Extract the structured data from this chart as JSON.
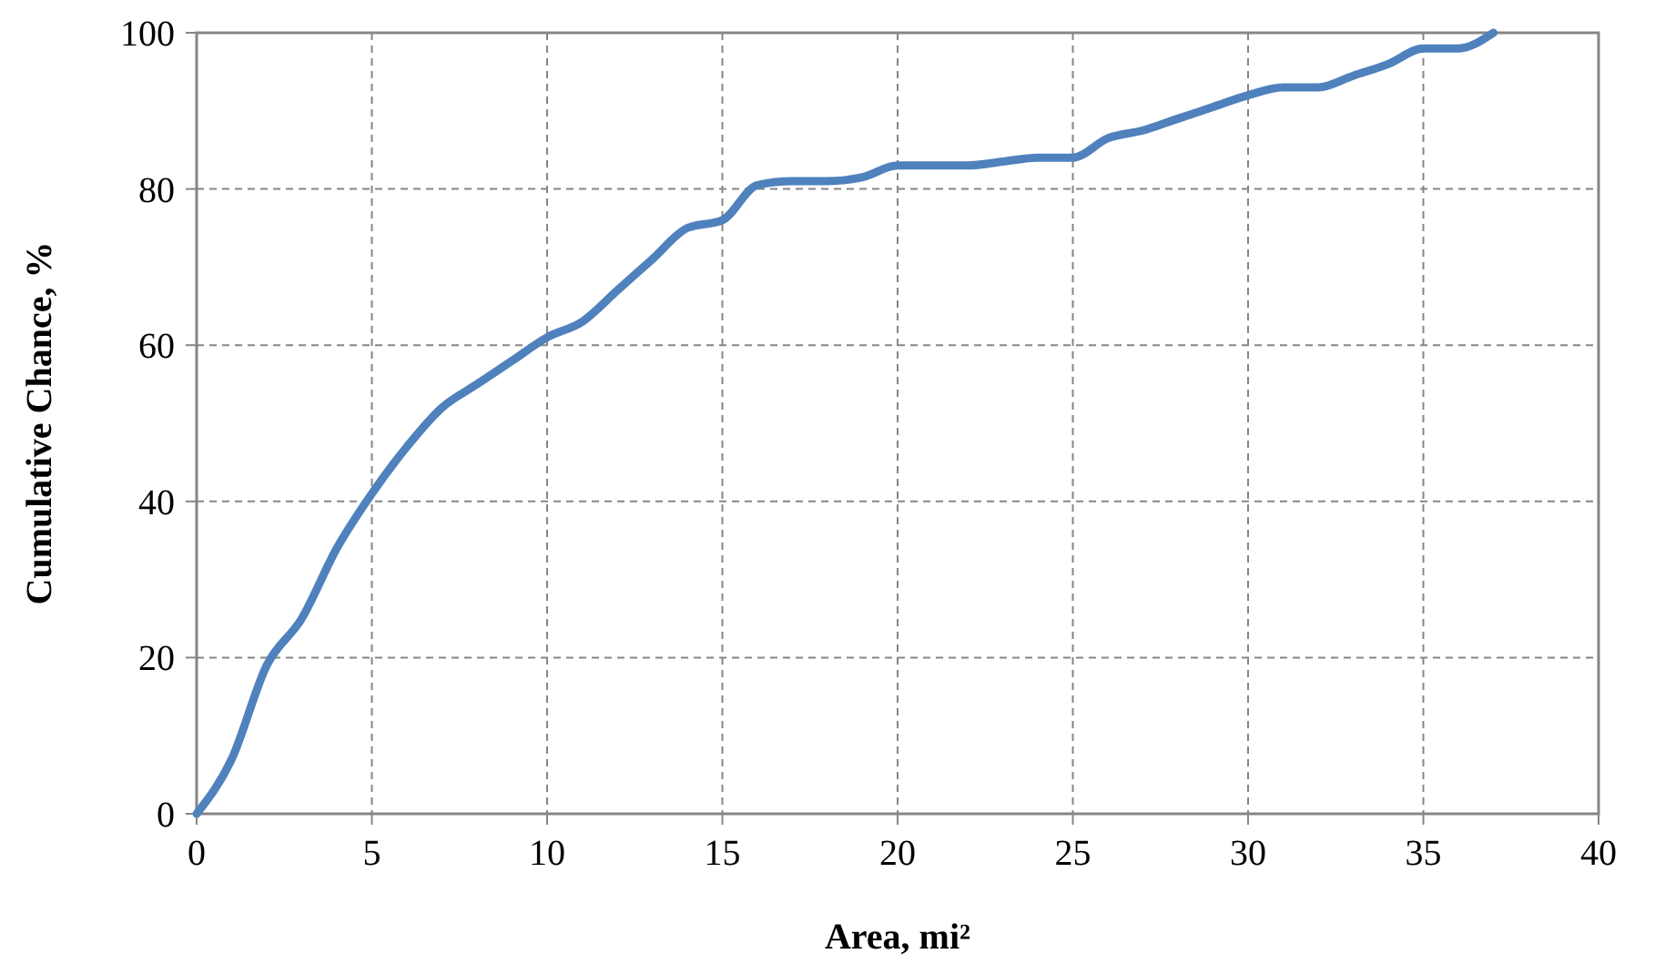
{
  "chart_data": {
    "type": "line",
    "xlabel": "Area, mi²",
    "ylabel": "Cumulative Chance, %",
    "x": [
      0,
      1,
      2,
      3,
      4,
      5,
      6,
      7,
      8,
      9,
      10,
      11,
      12,
      13,
      14,
      15,
      16,
      17,
      18,
      19,
      20,
      21,
      22,
      23,
      24,
      25,
      26,
      27,
      28,
      29,
      30,
      31,
      32,
      33,
      34,
      35,
      36,
      37
    ],
    "series": [
      {
        "color": "#4f81bd",
        "values": [
          0,
          7,
          19,
          25,
          34,
          41,
          47,
          52,
          55,
          58,
          61,
          63,
          67,
          71,
          75,
          76,
          80.5,
          81,
          81,
          81.5,
          83,
          83,
          83,
          83.5,
          84,
          84,
          86.5,
          87.5,
          89,
          90.5,
          92,
          93,
          93,
          94.5,
          96,
          98,
          98,
          100
        ]
      }
    ],
    "xlim": [
      0,
      40
    ],
    "xticks": [
      0,
      5,
      10,
      15,
      20,
      25,
      30,
      35,
      40
    ],
    "ylim": [
      0,
      100
    ],
    "yticks": [
      0,
      20,
      40,
      60,
      80,
      100
    ],
    "grid": true,
    "marker": "none",
    "line_style": "solid"
  }
}
